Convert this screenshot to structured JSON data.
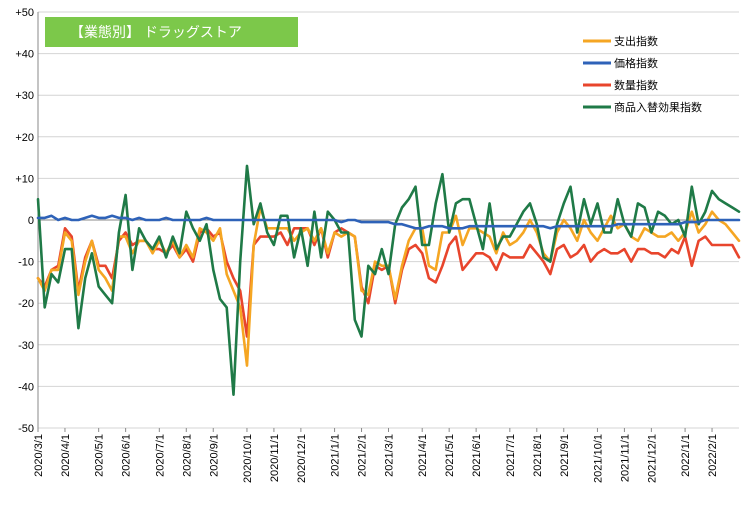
{
  "chart_data": {
    "type": "line",
    "title": "【業態別】 ドラッグストア",
    "xlabel": "",
    "ylabel": "",
    "ylim": [
      -50,
      50
    ],
    "yticks": [
      "+50",
      "+40",
      "+30",
      "+20",
      "+10",
      "0",
      "-10",
      "-20",
      "-30",
      "-40",
      "-50"
    ],
    "ytick_values": [
      50,
      40,
      30,
      20,
      10,
      0,
      -10,
      -20,
      -30,
      -40,
      -50
    ],
    "grid": true,
    "legend_position": "top-right",
    "x_labels": [
      "2020/3/1",
      "2020/4/1",
      "2020/5/1",
      "2020/6/1",
      "2020/7/1",
      "2020/8/1",
      "2020/9/1",
      "2020/10/1",
      "2020/11/1",
      "2020/12/1",
      "2021/1/1",
      "2021/2/1",
      "2021/3/1",
      "2021/4/1",
      "2021/5/1",
      "2021/6/1",
      "2021/7/1",
      "2021/8/1",
      "2021/9/1",
      "2021/10/1",
      "2021/11/1",
      "2021/12/1",
      "2022/1/1",
      "2022/2/1"
    ],
    "x_label_index": [
      0,
      4,
      9,
      13,
      18,
      22,
      26,
      31,
      35,
      39,
      44,
      48,
      52,
      57,
      61,
      65,
      70,
      74,
      78,
      83,
      87,
      91,
      96,
      100
    ],
    "series": [
      {
        "name": "支出指数",
        "color": "#f5a623",
        "values": [
          -14,
          -17,
          -12,
          -12,
          -3,
          -5,
          -18,
          -10,
          -5,
          -12,
          -14,
          -17,
          -4,
          -4,
          -8,
          -5,
          -5,
          -8,
          -5,
          -8,
          -5,
          -9,
          -6,
          -9,
          -2,
          -3,
          -5,
          -2,
          -13,
          -17,
          -21,
          -35,
          -6,
          3,
          -2,
          -2,
          -2,
          -2,
          -5,
          -3,
          -2,
          -5,
          -2,
          -8,
          -3,
          -4,
          -3,
          -4,
          -17,
          -18,
          -10,
          -11,
          -11,
          -19,
          -11,
          -5,
          -2,
          -2,
          -11,
          -12,
          -3,
          -3,
          1,
          -6,
          -2,
          -2,
          -3,
          -4,
          -8,
          -3,
          -6,
          -5,
          -3,
          0,
          -3,
          -8,
          -10,
          -3,
          0,
          -2,
          -5,
          0,
          -3,
          -5,
          -2,
          1,
          -2,
          -1,
          -4,
          -5,
          -2,
          -3,
          -4,
          -4,
          -3,
          -5,
          -3,
          2,
          -3,
          -1,
          2,
          0,
          -1,
          -3,
          -5
        ]
      },
      {
        "name": "価格指数",
        "color": "#2e62b8",
        "values": [
          0.5,
          0.5,
          1,
          0,
          0.5,
          0,
          0,
          0.5,
          1,
          0.5,
          0.5,
          1,
          0.5,
          0.5,
          0,
          0.5,
          0,
          0,
          0,
          0.5,
          0,
          0,
          0,
          0,
          0,
          0.5,
          0,
          0,
          0,
          0,
          0,
          0,
          0,
          0,
          0,
          0,
          0,
          0,
          0,
          0,
          0,
          0,
          0,
          0,
          0,
          -0.5,
          0,
          0,
          -0.5,
          -0.5,
          -0.5,
          -0.5,
          -0.5,
          -1,
          -1,
          -1.5,
          -2,
          -2,
          -1.5,
          -1.5,
          -1.5,
          -2,
          -2,
          -2,
          -1.5,
          -1.5,
          -1.5,
          -1.5,
          -1.5,
          -1.5,
          -1.5,
          -1.5,
          -1.5,
          -1.5,
          -1.5,
          -1.5,
          -2,
          -1.5,
          -1.5,
          -1.5,
          -1.5,
          -1.5,
          -1.5,
          -1.5,
          -1.5,
          -1.5,
          -1,
          -1,
          -1,
          -1,
          -1,
          -1,
          -1,
          -1,
          -1,
          -1,
          -0.5,
          -0.5,
          -0.5,
          0,
          0,
          0,
          0,
          0,
          0
        ]
      },
      {
        "name": "数量指数",
        "color": "#e8452c",
        "values": [
          -14,
          -16,
          -12,
          -11,
          -2,
          -4,
          -17,
          -9,
          -5,
          -11,
          -11,
          -14,
          -5,
          -3,
          -6,
          -5,
          -5,
          -7,
          -7,
          -8,
          -6,
          -9,
          -7,
          -10,
          -3,
          -2,
          -4,
          -3,
          -10,
          -14,
          -17,
          -28,
          -6,
          -4,
          -4,
          -4,
          -3,
          -6,
          -2,
          -2,
          -2,
          -6,
          -2,
          -9,
          -3,
          -2,
          -3,
          -4,
          -16,
          -20,
          -11,
          -12,
          -11,
          -20,
          -12,
          -7,
          -6,
          -8,
          -14,
          -15,
          -11,
          -6,
          -4,
          -12,
          -10,
          -8,
          -8,
          -9,
          -12,
          -8,
          -9,
          -9,
          -9,
          -6,
          -8,
          -10,
          -13,
          -7,
          -6,
          -9,
          -8,
          -6,
          -10,
          -8,
          -7,
          -8,
          -8,
          -7,
          -10,
          -7,
          -7,
          -8,
          -8,
          -9,
          -7,
          -8,
          -4,
          -11,
          -5,
          -4,
          -6,
          -6,
          -6,
          -6,
          -9
        ]
      },
      {
        "name": "商品入替効果指数",
        "color": "#1f7a47",
        "values": [
          5,
          -21,
          -13,
          -15,
          -7,
          -7,
          -26,
          -14,
          -8,
          -16,
          -18,
          -20,
          -3,
          6,
          -12,
          -2,
          -5,
          -7,
          -4,
          -9,
          -4,
          -8,
          2,
          -2,
          -5,
          -1,
          -12,
          -19,
          -21,
          -42,
          -10,
          13,
          -1,
          4,
          -3,
          -6,
          1,
          1,
          -9,
          -2,
          -11,
          2,
          -9,
          2,
          0,
          -3,
          -3,
          -24,
          -28,
          -11,
          -13,
          -7,
          -13,
          -1,
          3,
          5,
          8,
          -6,
          -6,
          4,
          11,
          -3,
          4,
          5,
          5,
          -1,
          -7,
          4,
          -7,
          -4,
          -4,
          -1,
          2,
          4,
          -1,
          -9,
          -10,
          -1,
          4,
          8,
          -3,
          5,
          -1,
          4,
          -3,
          -3,
          5,
          -1,
          -4,
          4,
          3,
          -3,
          2,
          1,
          -1,
          0,
          -4,
          8,
          -1,
          2,
          7,
          5,
          4,
          3,
          2
        ]
      }
    ]
  }
}
